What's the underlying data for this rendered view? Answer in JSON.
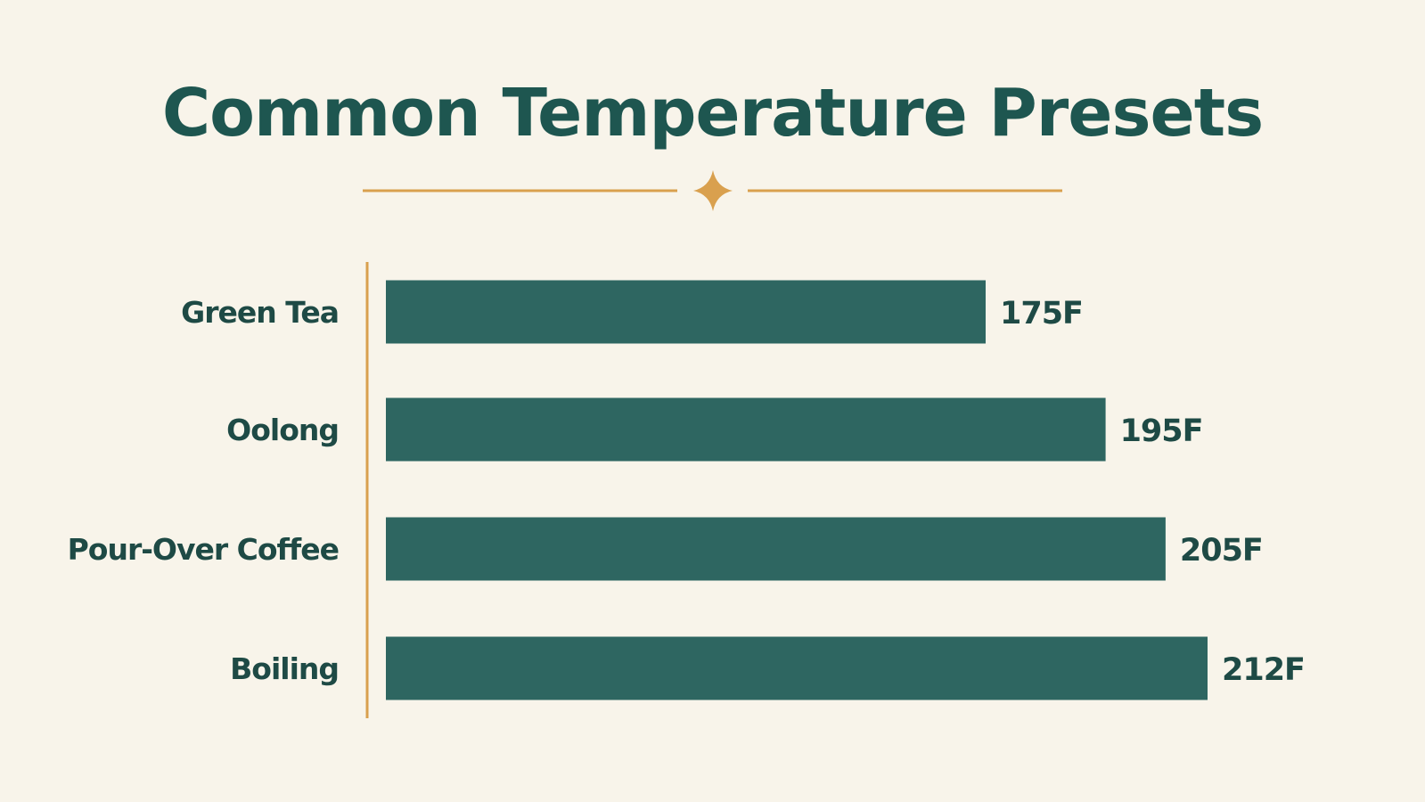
{
  "colors": {
    "background": "#f8f4ea",
    "title": "#1e5650",
    "accent": "#d9a04e",
    "bar": "#2e6661",
    "text": "#1e4a45"
  },
  "ornament_icon": "four-point-star-icon",
  "chart_data": {
    "type": "bar",
    "orientation": "horizontal",
    "title": "Common Temperature Presets",
    "categories": [
      "Green Tea",
      "Oolong",
      "Pour-Over Coffee",
      "Boiling"
    ],
    "values": [
      175,
      195,
      205,
      212
    ],
    "value_labels": [
      "175F",
      "195F",
      "205F",
      "212F"
    ],
    "unit": "F",
    "xlim": [
      75,
      212
    ],
    "grid": false,
    "legend": "none"
  }
}
